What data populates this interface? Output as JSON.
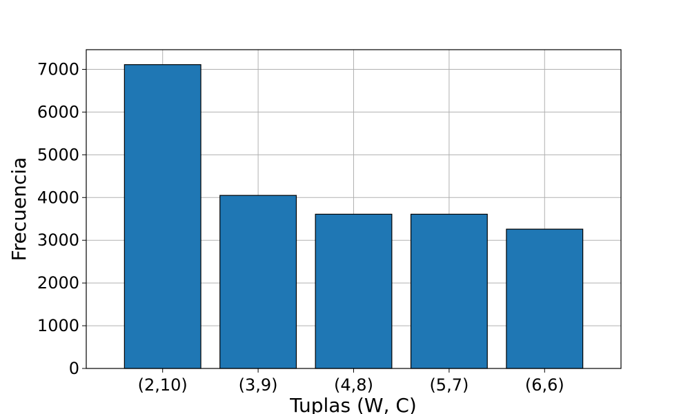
{
  "chart_data": {
    "type": "bar",
    "title": "",
    "xlabel": "Tuplas (W, C)",
    "ylabel": "Frecuencia",
    "categories": [
      "(2,10)",
      "(3,9)",
      "(4,8)",
      "(5,7)",
      "(6,6)"
    ],
    "values": [
      7110,
      4050,
      3610,
      3610,
      3260
    ],
    "ylim": [
      0,
      7460
    ],
    "yticks": [
      0,
      1000,
      2000,
      3000,
      4000,
      5000,
      6000,
      7000
    ],
    "grid": true,
    "bar_color": "#1f77b4",
    "bar_edge_color": "#000000",
    "grid_color": "#b0b0b0"
  }
}
